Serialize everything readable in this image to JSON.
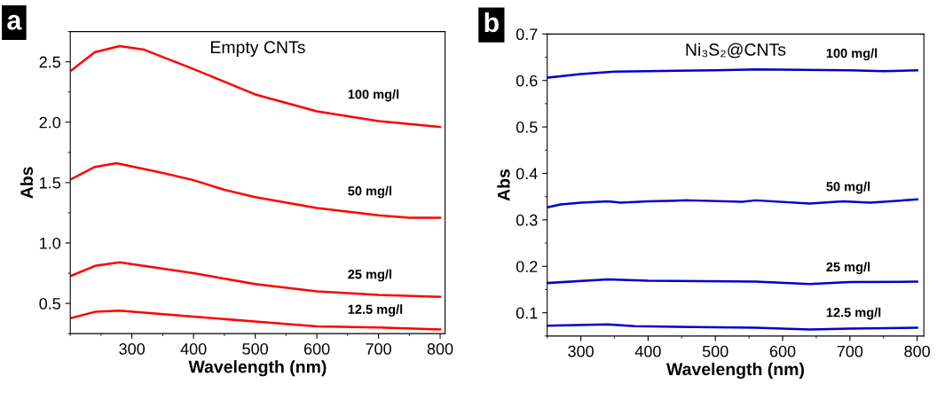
{
  "chart_data": [
    {
      "type": "line",
      "title": "Empty CNTs",
      "xlabel": "Wavelength (nm)",
      "ylabel": "Abs",
      "annotations": [
        "a"
      ],
      "xlim": [
        200,
        808
      ],
      "ylim": [
        0.25,
        2.75
      ],
      "xticks": [
        300,
        400,
        500,
        600,
        700,
        800
      ],
      "yticks": [
        0.5,
        {
          "value": 1,
          "label": "1.0"
        },
        1.5,
        {
          "value": 2,
          "label": "2.0"
        },
        2.5
      ],
      "grid": false,
      "legend": false,
      "marker": "none",
      "line_style": "solid",
      "series": [
        {
          "name": "100 mg/l",
          "color": "#ff0000",
          "x": [
            202,
            240,
            280,
            320,
            400,
            500,
            600,
            700,
            800
          ],
          "values": [
            2.43,
            2.58,
            2.63,
            2.6,
            2.44,
            2.23,
            2.09,
            2.01,
            1.96
          ]
        },
        {
          "name": "50 mg/l",
          "color": "#ff0000",
          "x": [
            202,
            240,
            275,
            350,
            400,
            450,
            500,
            600,
            700,
            750,
            800
          ],
          "values": [
            1.53,
            1.63,
            1.66,
            1.58,
            1.52,
            1.44,
            1.38,
            1.29,
            1.23,
            1.21,
            1.21
          ]
        },
        {
          "name": "25 mg/l",
          "color": "#ff0000",
          "x": [
            202,
            240,
            280,
            400,
            500,
            600,
            700,
            800
          ],
          "values": [
            0.73,
            0.81,
            0.84,
            0.75,
            0.66,
            0.6,
            0.57,
            0.555
          ]
        },
        {
          "name": "12.5 mg/l",
          "color": "#ff0000",
          "x": [
            202,
            240,
            280,
            400,
            500,
            600,
            700,
            800
          ],
          "values": [
            0.38,
            0.43,
            0.44,
            0.39,
            0.35,
            0.31,
            0.3,
            0.285
          ]
        }
      ]
    },
    {
      "type": "line",
      "title": "Ni₃S₂@CNTs",
      "xlabel": "Wavelength (nm)",
      "ylabel": "Abs",
      "annotations": [
        "b"
      ],
      "xlim": [
        250,
        810
      ],
      "ylim": [
        0.05,
        0.7
      ],
      "xticks": [
        300,
        400,
        500,
        600,
        700,
        800
      ],
      "yticks": [
        0.1,
        0.2,
        0.3,
        0.4,
        0.5,
        0.6,
        0.7
      ],
      "grid": false,
      "legend": false,
      "marker": "none",
      "line_style": "solid",
      "series": [
        {
          "name": "100 mg/l",
          "color": "#0000cc",
          "x": [
            250,
            300,
            350,
            400,
            500,
            560,
            700,
            750,
            800
          ],
          "values": [
            0.606,
            0.614,
            0.619,
            0.62,
            0.622,
            0.624,
            0.622,
            0.62,
            0.622
          ]
        },
        {
          "name": "50 mg/l",
          "color": "#0000cc",
          "x": [
            250,
            270,
            300,
            340,
            360,
            400,
            460,
            540,
            560,
            640,
            690,
            730,
            800
          ],
          "values": [
            0.327,
            0.333,
            0.337,
            0.34,
            0.337,
            0.34,
            0.342,
            0.339,
            0.342,
            0.335,
            0.34,
            0.337,
            0.344
          ]
        },
        {
          "name": "25 mg/l",
          "color": "#0000cc",
          "x": [
            250,
            340,
            400,
            560,
            640,
            700,
            800
          ],
          "values": [
            0.164,
            0.172,
            0.169,
            0.167,
            0.162,
            0.166,
            0.167
          ]
        },
        {
          "name": "12.5 mg/l",
          "color": "#0000cc",
          "x": [
            250,
            340,
            380,
            560,
            640,
            700,
            800
          ],
          "values": [
            0.072,
            0.075,
            0.071,
            0.068,
            0.064,
            0.066,
            0.068
          ]
        }
      ]
    }
  ]
}
